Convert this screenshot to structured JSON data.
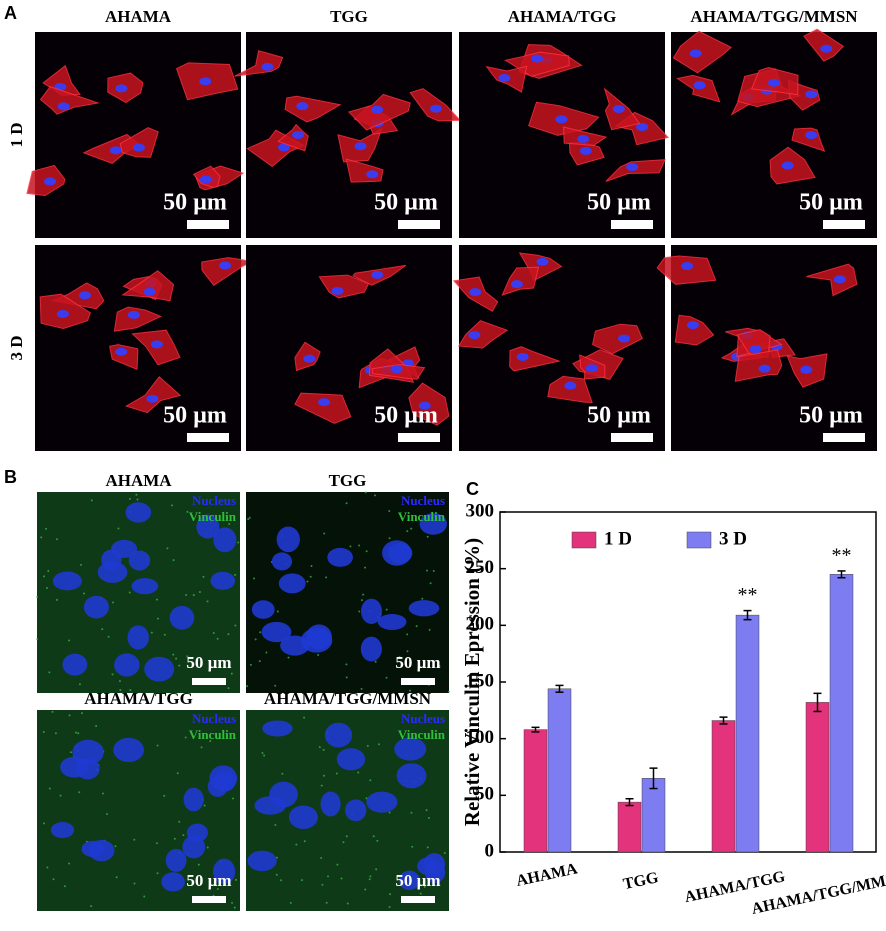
{
  "panel_a": {
    "label": "A",
    "columns": [
      "AHAMA",
      "TGG",
      "AHAMA/TGG",
      "AHAMA/TGG/MMSN"
    ],
    "rows": [
      "1 D",
      "3 D"
    ],
    "scale_bar": "50 µm"
  },
  "panel_b": {
    "label": "B",
    "titles": [
      "AHAMA",
      "TGG",
      "AHAMA/TGG",
      "AHAMA/TGG/MMSN"
    ],
    "nucleus": "Nucleus",
    "vinculin": "Vinculin",
    "scale_bar": "50 µm"
  },
  "chart_data": {
    "type": "bar",
    "panel_label": "C",
    "ylabel": "Relative Vinculin Epression (%)",
    "categories": [
      "AHAMA",
      "TGG",
      "AHAMA/TGG",
      "AHAMA/TGG/MMSN"
    ],
    "series": [
      {
        "name": "1 D",
        "color": "#e2337c",
        "values": [
          108,
          44,
          116,
          132
        ],
        "errors": [
          2,
          3,
          3,
          8
        ]
      },
      {
        "name": "3 D",
        "color": "#7d7cf0",
        "values": [
          144,
          65,
          209,
          245
        ],
        "errors": [
          3,
          9,
          4,
          3
        ],
        "significance": [
          null,
          null,
          "**",
          "**"
        ]
      }
    ],
    "ylim": [
      0,
      300
    ],
    "yticks": [
      0,
      50,
      100,
      150,
      200,
      250,
      300
    ],
    "legend": "top-left"
  }
}
